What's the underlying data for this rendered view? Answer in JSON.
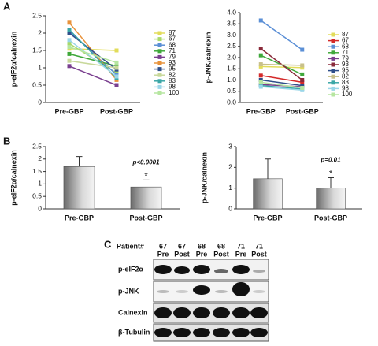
{
  "panel_labels": [
    "A",
    "B",
    "C"
  ],
  "chart_data": [
    {
      "type": "line",
      "y_label": "p-eIF2α/calnexin",
      "categories": [
        "Pre-GBP",
        "Post-GBP"
      ],
      "ylim": [
        0,
        2.5
      ],
      "yticks": [
        0,
        0.5,
        1,
        1.5,
        2,
        2.5
      ],
      "series": [
        {
          "name": "87",
          "color": "#e2dc5a",
          "values": [
            1.55,
            1.5
          ]
        },
        {
          "name": "67",
          "color": "#a8d86a",
          "values": [
            1.7,
            0.85
          ]
        },
        {
          "name": "68",
          "color": "#5b8fd6",
          "values": [
            2.05,
            0.8
          ]
        },
        {
          "name": "71",
          "color": "#3fa83a",
          "values": [
            1.4,
            1.05
          ]
        },
        {
          "name": "79",
          "color": "#7a3f8f",
          "values": [
            1.05,
            0.5
          ]
        },
        {
          "name": "93",
          "color": "#e8923a",
          "values": [
            2.3,
            0.65
          ]
        },
        {
          "name": "95",
          "color": "#2f4f8a",
          "values": [
            2.0,
            0.95
          ]
        },
        {
          "name": "82",
          "color": "#c8d89a",
          "values": [
            1.2,
            1.0
          ]
        },
        {
          "name": "83",
          "color": "#3aa6a6",
          "values": [
            2.1,
            0.7
          ]
        },
        {
          "name": "98",
          "color": "#9ad6e8",
          "values": [
            1.8,
            0.75
          ]
        },
        {
          "name": "100",
          "color": "#b6e6a0",
          "values": [
            1.6,
            1.15
          ]
        }
      ]
    },
    {
      "type": "line",
      "y_label": "p-JNK/calnexin",
      "categories": [
        "Pre-GBP",
        "Post-GBP"
      ],
      "ylim": [
        0,
        4
      ],
      "yticks": [
        {
          "value": 0,
          "label": "0.0"
        },
        0.5,
        {
          "value": 1,
          "label": "1.0"
        },
        1.5,
        {
          "value": 2,
          "label": "2.0"
        },
        2.5,
        {
          "value": 3,
          "label": "3.0"
        },
        3.5,
        {
          "value": 4,
          "label": "4.0"
        }
      ],
      "series": [
        {
          "name": "87",
          "color": "#e2dc5a",
          "values": [
            1.6,
            1.55
          ]
        },
        {
          "name": "67",
          "color": "#d42a2a",
          "values": [
            1.2,
            0.9
          ]
        },
        {
          "name": "68",
          "color": "#5b8fd6",
          "values": [
            3.65,
            2.35
          ]
        },
        {
          "name": "71",
          "color": "#3fa83a",
          "values": [
            2.1,
            1.25
          ]
        },
        {
          "name": "79",
          "color": "#7a3f8f",
          "values": [
            0.8,
            0.7
          ]
        },
        {
          "name": "93",
          "color": "#8a2a3a",
          "values": [
            2.4,
            1.0
          ]
        },
        {
          "name": "95",
          "color": "#2f4f8a",
          "values": [
            1.0,
            0.75
          ]
        },
        {
          "name": "82",
          "color": "#c8c08a",
          "values": [
            1.7,
            1.65
          ]
        },
        {
          "name": "83",
          "color": "#3aa6a6",
          "values": [
            0.75,
            0.6
          ]
        },
        {
          "name": "98",
          "color": "#9ad6e8",
          "values": [
            0.7,
            0.55
          ]
        },
        {
          "name": "100",
          "color": "#b6e6a0",
          "values": [
            0.9,
            0.65
          ]
        }
      ]
    },
    {
      "type": "bar",
      "y_label": "p-eIF2α/calnexin",
      "categories": [
        "Pre-GBP",
        "Post-GBP"
      ],
      "values": [
        1.7,
        0.88
      ],
      "errors": [
        0.4,
        0.28
      ],
      "ylim": [
        0,
        2.5
      ],
      "yticks": [
        0,
        0.5,
        1,
        1.5,
        2,
        2.5
      ],
      "p_text": "p<0.0001",
      "star": "*"
    },
    {
      "type": "bar",
      "y_label": "p-JNK/calnexin",
      "categories": [
        "Pre-GBP",
        "Post-GBP"
      ],
      "values": [
        1.45,
        1.0
      ],
      "errors": [
        0.95,
        0.5
      ],
      "ylim": [
        0,
        3
      ],
      "yticks": [
        0,
        1,
        2,
        3
      ],
      "p_text": "p=0.01",
      "star": "*"
    }
  ],
  "blot": {
    "header_label": "Patient#",
    "patients": [
      "67",
      "67",
      "68",
      "68",
      "71",
      "71"
    ],
    "timepoints": [
      "Pre",
      "Post",
      "Pre",
      "Post",
      "Pre",
      "Post"
    ],
    "rows": [
      "p-eIF2α",
      "p-JNK",
      "Calnexin",
      "β-Tubulin"
    ]
  }
}
